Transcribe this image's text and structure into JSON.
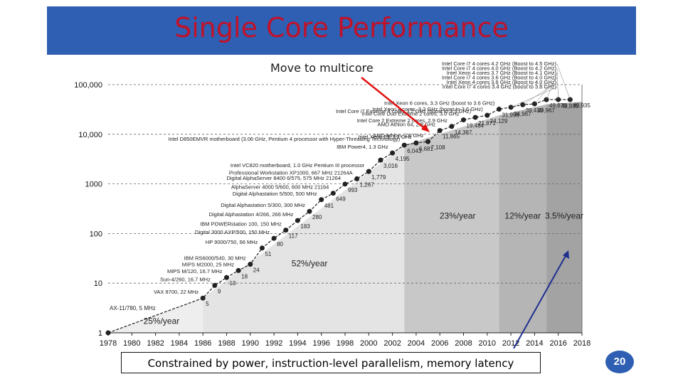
{
  "slide": {
    "title": "Single Core Performance",
    "annotation_top": "Move to multicore",
    "annotation_bottom": "Constrained by power, instruction-level parallelism, memory latency",
    "page_number": "20",
    "colors": {
      "title_bg": "#2e5fb2",
      "title_text": "#c0122a",
      "arrow_red": "#e01010",
      "arrow_blue": "#1d2f8f"
    }
  },
  "chart_data": {
    "type": "scatter",
    "title": "",
    "x_range": [
      1978,
      2018
    ],
    "y_scale": "log",
    "y_range": [
      1,
      100000
    ],
    "x_ticks": [
      "1978",
      "1980",
      "1982",
      "1984",
      "1986",
      "1988",
      "1990",
      "1992",
      "1994",
      "1996",
      "1998",
      "2000",
      "2002",
      "2004",
      "2006",
      "2008",
      "2010",
      "2012",
      "2014",
      "2016",
      "2018"
    ],
    "y_ticks": [
      {
        "v": 1,
        "label": "1"
      },
      {
        "v": 10,
        "label": "10"
      },
      {
        "v": 100,
        "label": "100"
      },
      {
        "v": 1000,
        "label": "1000"
      },
      {
        "v": 10000,
        "label": "10,000"
      },
      {
        "v": 100000,
        "label": "100,000"
      }
    ],
    "gridlines": "dashed horizontal at decades",
    "regions": [
      {
        "x0": 1978,
        "x1": 1986,
        "y0": 1,
        "y1": 5,
        "label": "25%/year",
        "lx": 1982.5,
        "ly": 1.5
      },
      {
        "x0": 1986,
        "x1": 2003,
        "y0": 5,
        "y1": 6000,
        "label": "52%/year",
        "lx": 1995,
        "ly": 22
      },
      {
        "x0": 2003,
        "x1": 2011,
        "y0": 6000,
        "y1": 24000,
        "label": "23%/year",
        "lx": 2007.5,
        "ly": 200
      },
      {
        "x0": 2011,
        "x1": 2015,
        "y0": 24000,
        "y1": 40000,
        "label": "12%/year",
        "lx": 2013,
        "ly": 200
      },
      {
        "x0": 2015,
        "x1": 2018,
        "y0": 40000,
        "y1": 45000,
        "label": "3.5%/year",
        "lx": 2016.5,
        "ly": 200
      }
    ],
    "points": [
      {
        "x": 1978,
        "y": 1,
        "value": "",
        "label": "AX-11/780, 5 MHz"
      },
      {
        "x": 1986,
        "y": 5,
        "value": "5",
        "label": "VAX 8700, 22 MHz"
      },
      {
        "x": 1987,
        "y": 9,
        "value": "9",
        "label": "Sun-4/260, 16.7 MHz"
      },
      {
        "x": 1988,
        "y": 13,
        "value": "13",
        "label": "MIPS M/120, 16.7 MHz"
      },
      {
        "x": 1989,
        "y": 18,
        "value": "18",
        "label": "MIPS M2000, 25 MHz"
      },
      {
        "x": 1990,
        "y": 24,
        "value": "24",
        "label": "IBM RS6000/540, 30 MHz"
      },
      {
        "x": 1991,
        "y": 51,
        "value": "51",
        "label": "HP 9000/750, 66 MHz"
      },
      {
        "x": 1992,
        "y": 80,
        "value": "80",
        "label": "Digital 3000 AXP/500, 150 MHz"
      },
      {
        "x": 1993,
        "y": 117,
        "value": "117",
        "label": "IBM POWERstation 100, 150 MHz"
      },
      {
        "x": 1994,
        "y": 183,
        "value": "183",
        "label": "Digital Alphastation 4/266, 266 MHz"
      },
      {
        "x": 1995,
        "y": 280,
        "value": "280",
        "label": "Digital Alphastation 5/300, 300 MHz"
      },
      {
        "x": 1996,
        "y": 481,
        "value": "481",
        "label": "Digital Alphastation 5/500, 500 MHz"
      },
      {
        "x": 1997,
        "y": 649,
        "value": "649",
        "label": "AlphaServer 4000 5/600, 600 MHz 21164"
      },
      {
        "x": 1998,
        "y": 993,
        "value": "993",
        "label": "Digital AlphaServer 8400 6/575, 575 MHz 21264"
      },
      {
        "x": 1999,
        "y": 1267,
        "value": "1,267",
        "label": "Professional Workstation XP1000, 667 MHz 21264A"
      },
      {
        "x": 2000,
        "y": 1779,
        "value": "1,779",
        "label": "Intel VC820 motherboard, 1.0 GHz Pentium III processor"
      },
      {
        "x": 2001,
        "y": 3016,
        "value": "3,016",
        "label": ""
      },
      {
        "x": 2002,
        "y": 4195,
        "value": "4,195",
        "label": "IBM Power4, 1.3 GHz"
      },
      {
        "x": 2003,
        "y": 6043,
        "value": "6,043",
        "label": "Intel D850EMVR motherboard (3.06 GHz, Pentium 4 processor with Hyper-Threading Technology)"
      },
      {
        "x": 2004,
        "y": 6681,
        "value": "6,681",
        "label": "Intel Xeon EE 3.2 GHz"
      },
      {
        "x": 2005,
        "y": 7108,
        "value": "7,108",
        "label": "AMD Athlon, 2.6 GHz"
      },
      {
        "x": 2006,
        "y": 11865,
        "value": "11,865",
        "label": "AMD Athlon 64, 2.8 GHz"
      },
      {
        "x": 2007,
        "y": 14387,
        "value": "14,387",
        "label": "Intel Core 2 Extreme 2 cores, 2.9 GHz"
      },
      {
        "x": 2008,
        "y": 19484,
        "value": "19,484",
        "label": "Intel Core Duo Extreme 2 cores, 3.0 GHz"
      },
      {
        "x": 2009,
        "y": 21871,
        "value": "21,871",
        "label": "Intel Core i7 Extreme 4 cores 3.2 GHz (boost to 3.5 GHz)"
      },
      {
        "x": 2010,
        "y": 24129,
        "value": "24,129",
        "label": "Intel Xeon 4 cores, 3.3 GHz (boost to 3.6 GHz)"
      },
      {
        "x": 2011,
        "y": 31999,
        "value": "31,999",
        "label": "Intel Xeon 6 cores, 3.3 GHz (boost to 3.6 GHz)"
      },
      {
        "x": 2012,
        "y": 34967,
        "value": "34,967",
        "label": "Intel Core i7 4 cores 3.4 GHz (boost to 3.8 GHz)"
      },
      {
        "x": 2013,
        "y": 39419,
        "value": "39,419",
        "label": "Intel Xeon 4 cores 3.6 GHz (Boost to 4.0 GHz)"
      },
      {
        "x": 2014,
        "y": 40967,
        "value": "40,967",
        "label": "Intel Core i7 4 cores 3.6 GHz (Boost to 4.0 GHz)"
      },
      {
        "x": 2015,
        "y": 49870,
        "value": "49,870",
        "label": "Intel Xeon 4 cores 3.7 GHz (Boost to 4.1 GHz)"
      },
      {
        "x": 2016,
        "y": 49935,
        "value": "49,935",
        "label": "Intel Core i7 4 cores 4.0 GHz (Boost to 4.2 GHz)"
      },
      {
        "x": 2017,
        "y": 49935,
        "value": "49,935",
        "label": "Intel Core i7 4 cores 4.2 GHz (Boost to 4.5 GHz)"
      }
    ]
  }
}
